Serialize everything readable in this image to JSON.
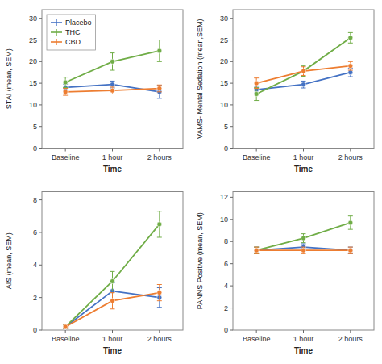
{
  "chart_data": [
    {
      "type": "line",
      "xlabel": "Time",
      "ylabel": "STAI (mean, SEM)",
      "categories": [
        "Baseline",
        "1 hour",
        "2 hours"
      ],
      "ylim": [
        0,
        32
      ],
      "yticks": [
        0,
        5,
        10,
        15,
        20,
        25,
        30
      ],
      "marker": "circle",
      "legend": "upper left",
      "series": [
        {
          "name": "Placebo",
          "color": "#4472c4",
          "values": [
            14.0,
            14.7,
            13.0
          ],
          "errors": [
            0.8,
            0.8,
            1.5
          ]
        },
        {
          "name": "THC",
          "color": "#70ad47",
          "values": [
            15.2,
            20.0,
            22.5
          ],
          "errors": [
            1.2,
            2.0,
            2.5
          ]
        },
        {
          "name": "CBD",
          "color": "#ed7d31",
          "values": [
            13.0,
            13.3,
            13.8
          ],
          "errors": [
            0.8,
            0.8,
            0.8
          ]
        }
      ]
    },
    {
      "type": "line",
      "xlabel": "Time",
      "ylabel": "VAMS- Mental Sedation (mean,SEM)",
      "categories": [
        "Baseline",
        "1 hour",
        "2 hours"
      ],
      "ylim": [
        0,
        32
      ],
      "yticks": [
        0,
        5,
        10,
        15,
        20,
        25,
        30
      ],
      "marker": "circle",
      "series": [
        {
          "name": "Placebo",
          "color": "#4472c4",
          "values": [
            13.5,
            14.7,
            17.5
          ],
          "errors": [
            0.8,
            0.8,
            1.0
          ]
        },
        {
          "name": "THC",
          "color": "#70ad47",
          "values": [
            12.5,
            17.8,
            25.5
          ],
          "errors": [
            1.5,
            1.2,
            1.2
          ]
        },
        {
          "name": "CBD",
          "color": "#ed7d31",
          "values": [
            15.0,
            17.8,
            19.0
          ],
          "errors": [
            1.2,
            1.0,
            1.0
          ]
        }
      ]
    },
    {
      "type": "line",
      "xlabel": "Time",
      "ylabel": "AIS (mean, SEM)",
      "categories": [
        "Baseline",
        "1 hour",
        "2 hours"
      ],
      "ylim": [
        0,
        8.5
      ],
      "yticks": [
        0,
        2,
        4,
        6,
        8
      ],
      "marker": "circle",
      "series": [
        {
          "name": "Placebo",
          "color": "#4472c4",
          "values": [
            0.2,
            2.4,
            2.0
          ],
          "errors": [
            0.1,
            0.5,
            0.6
          ]
        },
        {
          "name": "THC",
          "color": "#70ad47",
          "values": [
            0.2,
            3.0,
            6.5
          ],
          "errors": [
            0.1,
            0.6,
            0.8
          ]
        },
        {
          "name": "CBD",
          "color": "#ed7d31",
          "values": [
            0.2,
            1.8,
            2.3
          ],
          "errors": [
            0.1,
            0.5,
            0.5
          ]
        }
      ]
    },
    {
      "type": "line",
      "xlabel": "Time",
      "ylabel": "PANNS Positive (mean, SEM)",
      "categories": [
        "Baseline",
        "1 hour",
        "2 hours"
      ],
      "ylim": [
        0,
        12.5
      ],
      "yticks": [
        0,
        2,
        4,
        6,
        8,
        10,
        12
      ],
      "marker": "circle",
      "series": [
        {
          "name": "Placebo",
          "color": "#4472c4",
          "values": [
            7.2,
            7.5,
            7.2
          ],
          "errors": [
            0.3,
            0.3,
            0.3
          ]
        },
        {
          "name": "THC",
          "color": "#70ad47",
          "values": [
            7.2,
            8.3,
            9.7
          ],
          "errors": [
            0.3,
            0.4,
            0.6
          ]
        },
        {
          "name": "CBD",
          "color": "#ed7d31",
          "values": [
            7.2,
            7.2,
            7.2
          ],
          "errors": [
            0.3,
            0.3,
            0.3
          ]
        }
      ]
    }
  ]
}
